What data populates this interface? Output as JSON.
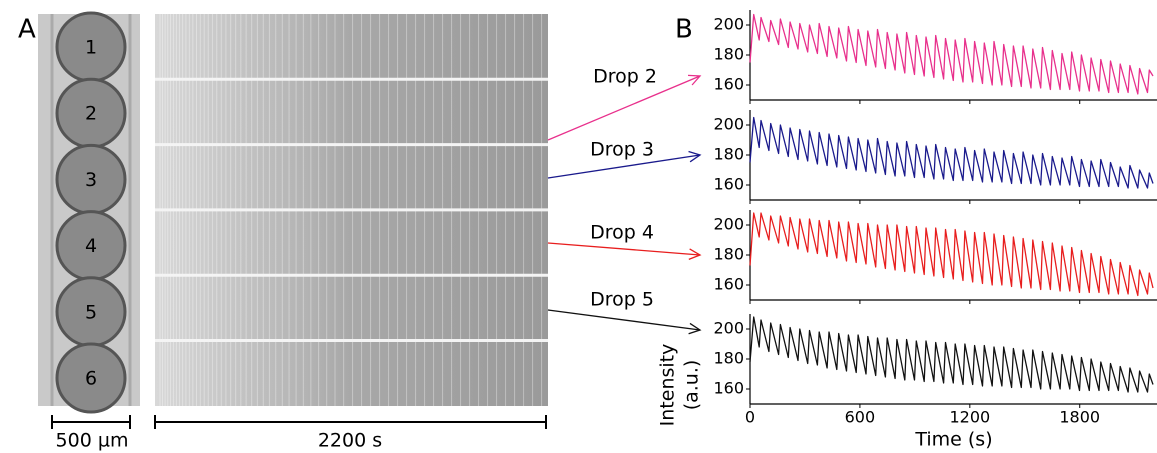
{
  "figure": {
    "panel_labels": [
      "A",
      "B"
    ],
    "drop_numbers": [
      "1",
      "2",
      "3",
      "4",
      "5",
      "6"
    ],
    "scale_bars": [
      "500 µm",
      "2200 s"
    ]
  },
  "chart_data": {
    "type": "line",
    "xlabel": "Time (s)",
    "ylabel": [
      "Intensity",
      "(a.u.)"
    ],
    "xlim": [
      0,
      2200
    ],
    "ylim": [
      150,
      210
    ],
    "xticks": [
      0,
      600,
      1200,
      1800
    ],
    "yticks": [
      160,
      180,
      200
    ],
    "x": [
      0,
      20,
      50,
      60,
      103,
      113,
      156,
      166,
      209,
      219,
      262,
      272,
      315,
      325,
      368,
      378,
      421,
      431,
      474,
      484,
      527,
      537,
      580,
      590,
      633,
      643,
      686,
      696,
      739,
      749,
      792,
      802,
      845,
      855,
      898,
      908,
      951,
      961,
      1004,
      1014,
      1057,
      1067,
      1110,
      1120,
      1163,
      1173,
      1216,
      1226,
      1269,
      1279,
      1322,
      1332,
      1375,
      1385,
      1428,
      1438,
      1481,
      1491,
      1534,
      1544,
      1587,
      1597,
      1640,
      1650,
      1693,
      1703,
      1746,
      1756,
      1799,
      1809,
      1852,
      1862,
      1905,
      1915,
      1958,
      1968,
      2011,
      2021,
      2064,
      2074,
      2117,
      2127,
      2170,
      2180,
      2200
    ],
    "series": [
      {
        "name": "Drop 2",
        "color": "#e8308c",
        "values": [
          175,
          207,
          190,
          205,
          189,
          203,
          187,
          204,
          185,
          202,
          184,
          201,
          182,
          200,
          181,
          201,
          179,
          199,
          178,
          198,
          176,
          199,
          175,
          197,
          173,
          196,
          172,
          197,
          171,
          195,
          170,
          194,
          168,
          195,
          167,
          193,
          166,
          192,
          165,
          193,
          164,
          191,
          163,
          190,
          162,
          191,
          162,
          189,
          161,
          188,
          160,
          189,
          160,
          187,
          159,
          186,
          159,
          186,
          158,
          184,
          158,
          185,
          157,
          183,
          157,
          181,
          157,
          182,
          156,
          180,
          156,
          178,
          156,
          177,
          155,
          176,
          155,
          174,
          155,
          173,
          154,
          171,
          155,
          170,
          166
        ]
      },
      {
        "name": "Drop 3",
        "color": "#1a1a8c",
        "values": [
          175,
          205,
          185,
          203,
          183,
          201,
          181,
          200,
          179,
          198,
          177,
          197,
          176,
          196,
          174,
          195,
          173,
          194,
          172,
          193,
          171,
          192,
          170,
          191,
          169,
          190,
          168,
          191,
          167,
          189,
          166,
          188,
          166,
          189,
          165,
          187,
          165,
          186,
          164,
          187,
          164,
          185,
          163,
          184,
          163,
          185,
          163,
          183,
          162,
          184,
          162,
          182,
          162,
          183,
          161,
          181,
          161,
          182,
          161,
          180,
          160,
          181,
          160,
          179,
          160,
          178,
          160,
          179,
          159,
          177,
          159,
          176,
          159,
          177,
          159,
          175,
          159,
          172,
          158,
          173,
          158,
          170,
          158,
          168,
          161
        ]
      },
      {
        "name": "Drop 4",
        "color": "#e81e1e",
        "values": [
          173,
          208,
          192,
          208,
          190,
          206,
          188,
          206,
          186,
          205,
          184,
          204,
          182,
          204,
          181,
          203,
          179,
          203,
          178,
          202,
          176,
          202,
          175,
          201,
          174,
          201,
          172,
          200,
          171,
          200,
          170,
          200,
          169,
          199,
          168,
          199,
          167,
          198,
          166,
          198,
          165,
          197,
          164,
          197,
          163,
          196,
          162,
          195,
          161,
          195,
          160,
          194,
          160,
          193,
          159,
          192,
          158,
          191,
          158,
          190,
          157,
          189,
          157,
          188,
          156,
          186,
          156,
          185,
          155,
          183,
          155,
          181,
          155,
          179,
          154,
          177,
          154,
          175,
          154,
          173,
          153,
          170,
          154,
          168,
          158
        ]
      },
      {
        "name": "Drop 5",
        "color": "#111111",
        "values": [
          178,
          208,
          188,
          206,
          185,
          204,
          183,
          203,
          181,
          201,
          179,
          200,
          177,
          199,
          176,
          198,
          174,
          198,
          173,
          197,
          172,
          196,
          171,
          196,
          170,
          195,
          169,
          194,
          168,
          194,
          167,
          193,
          166,
          193,
          166,
          192,
          165,
          192,
          165,
          191,
          164,
          191,
          164,
          190,
          163,
          190,
          163,
          189,
          162,
          189,
          162,
          188,
          162,
          188,
          161,
          187,
          161,
          186,
          161,
          186,
          160,
          185,
          160,
          184,
          160,
          183,
          160,
          182,
          159,
          181,
          159,
          180,
          159,
          178,
          159,
          177,
          159,
          175,
          158,
          174,
          158,
          172,
          158,
          170,
          163
        ]
      }
    ]
  }
}
